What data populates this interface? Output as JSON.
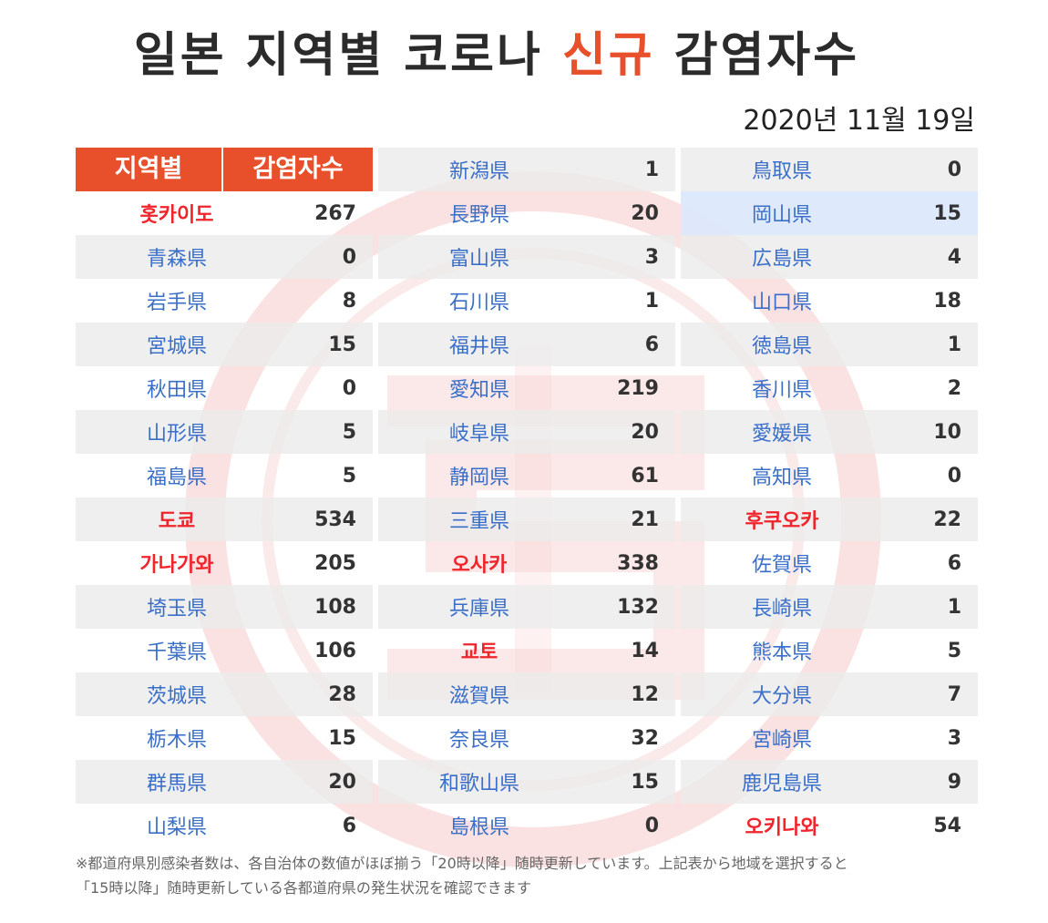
{
  "title": {
    "main": "일본 지역별 코로나",
    "accent": "신규",
    "tail": "감염자수"
  },
  "date": "2020년 11월 19일",
  "table": {
    "header": {
      "region": "지역별",
      "count": "감염자수"
    },
    "columns": [
      [
        {
          "name": "홋카이도",
          "value": "267",
          "korean": true
        },
        {
          "name": "青森県",
          "value": "0"
        },
        {
          "name": "岩手県",
          "value": "8"
        },
        {
          "name": "宮城県",
          "value": "15"
        },
        {
          "name": "秋田県",
          "value": "0"
        },
        {
          "name": "山形県",
          "value": "5"
        },
        {
          "name": "福島県",
          "value": "5"
        },
        {
          "name": "도쿄",
          "value": "534",
          "korean": true
        },
        {
          "name": "가나가와",
          "value": "205",
          "korean": true
        },
        {
          "name": "埼玉県",
          "value": "108"
        },
        {
          "name": "千葉県",
          "value": "106"
        },
        {
          "name": "茨城県",
          "value": "28"
        },
        {
          "name": "栃木県",
          "value": "15"
        },
        {
          "name": "群馬県",
          "value": "20"
        },
        {
          "name": "山梨県",
          "value": "6"
        }
      ],
      [
        {
          "name": "新潟県",
          "value": "1"
        },
        {
          "name": "長野県",
          "value": "20"
        },
        {
          "name": "富山県",
          "value": "3"
        },
        {
          "name": "石川県",
          "value": "1"
        },
        {
          "name": "福井県",
          "value": "6"
        },
        {
          "name": "愛知県",
          "value": "219"
        },
        {
          "name": "岐阜県",
          "value": "20"
        },
        {
          "name": "静岡県",
          "value": "61"
        },
        {
          "name": "三重県",
          "value": "21"
        },
        {
          "name": "오사카",
          "value": "338",
          "korean": true
        },
        {
          "name": "兵庫県",
          "value": "132"
        },
        {
          "name": "교토",
          "value": "14",
          "korean": true
        },
        {
          "name": "滋賀県",
          "value": "12"
        },
        {
          "name": "奈良県",
          "value": "32"
        },
        {
          "name": "和歌山県",
          "value": "15"
        },
        {
          "name": "島根県",
          "value": "0"
        }
      ],
      [
        {
          "name": "鳥取県",
          "value": "0"
        },
        {
          "name": "岡山県",
          "value": "15",
          "highlight": true
        },
        {
          "name": "広島県",
          "value": "4"
        },
        {
          "name": "山口県",
          "value": "18"
        },
        {
          "name": "徳島県",
          "value": "1"
        },
        {
          "name": "香川県",
          "value": "2"
        },
        {
          "name": "愛媛県",
          "value": "10"
        },
        {
          "name": "高知県",
          "value": "0"
        },
        {
          "name": "후쿠오카",
          "value": "22",
          "korean": true
        },
        {
          "name": "佐賀県",
          "value": "6"
        },
        {
          "name": "長崎県",
          "value": "1"
        },
        {
          "name": "熊本県",
          "value": "5"
        },
        {
          "name": "大分県",
          "value": "7"
        },
        {
          "name": "宮崎県",
          "value": "3"
        },
        {
          "name": "鹿児島県",
          "value": "9"
        },
        {
          "name": "오키나와",
          "value": "54",
          "korean": true
        }
      ]
    ]
  },
  "note": {
    "line1": "※都道府県別感染者数は、各自治体の数値がほぼ揃う「20時以降」随時更新しています。上記表から地域を選択すると",
    "line2": "「15時以降」随時更新している各都道府県の発生状況を確認できます"
  },
  "colors": {
    "accent": "#e8502c",
    "korean_name": "#f0242b",
    "jp_name": "#3a6fc9",
    "row_shade": "#ececec",
    "highlight": "#dde8fc"
  },
  "icons": {
    "watermark": "red-circle-watermark"
  }
}
